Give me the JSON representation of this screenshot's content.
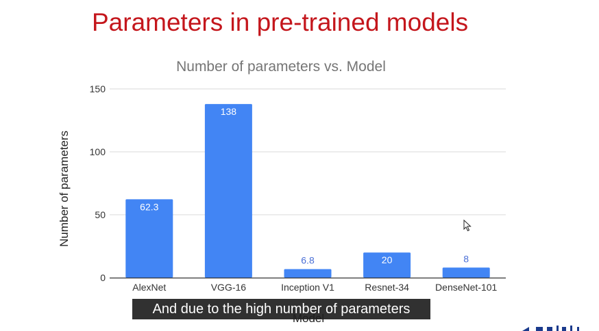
{
  "slide": {
    "title": "Parameters in pre-trained models",
    "caption": "And due to the high number of parameters"
  },
  "icons": {
    "cursor": "mouse-pointer-icon",
    "logo": "brand-logo-partial"
  },
  "colors": {
    "title": "#c4161c",
    "bar": "#4285f4",
    "bar_label_inside": "#ffffff",
    "bar_label_outside": "#4a6fd6",
    "grid": "#d9d9d9",
    "axis_text": "#333333",
    "chart_title": "#757575",
    "logo": "#1a3a8c"
  },
  "chart_data": {
    "type": "bar",
    "title": "Number of parameters vs. Model",
    "xlabel": "Model",
    "ylabel": "Number of parameters",
    "categories": [
      "AlexNet",
      "VGG-16",
      "Inception V1",
      "Resnet-34",
      "DenseNet-101"
    ],
    "values": [
      62.3,
      138,
      6.8,
      20,
      8
    ],
    "value_labels": [
      "62.3",
      "138",
      "6.8",
      "20",
      "8"
    ],
    "ylim": [
      0,
      150
    ],
    "yticks": [
      0,
      50,
      100,
      150
    ],
    "grid": true,
    "legend": "none"
  }
}
